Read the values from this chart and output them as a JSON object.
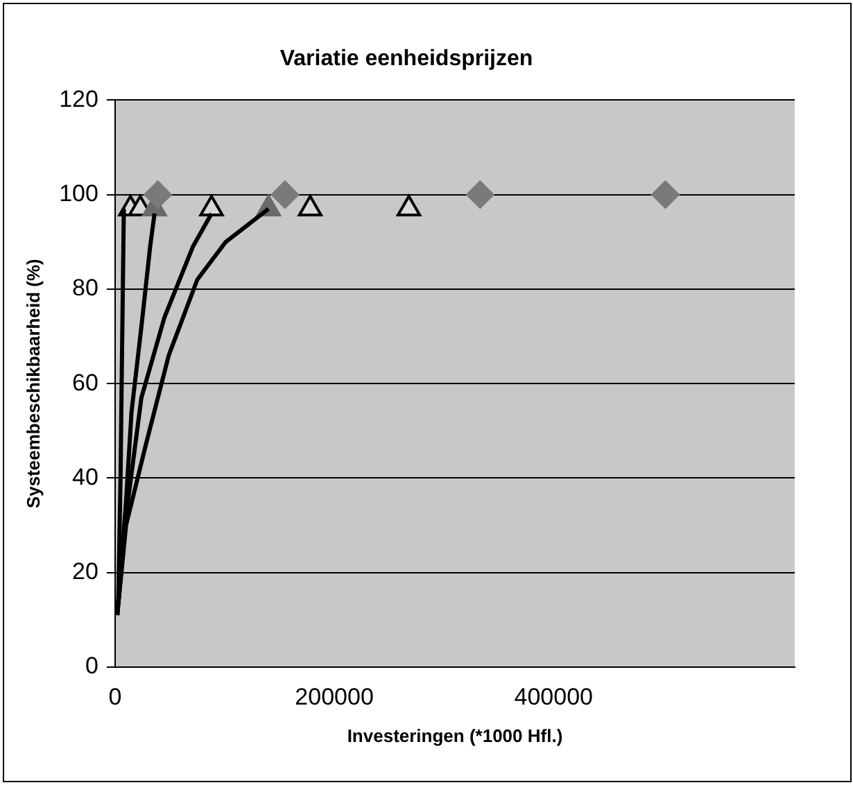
{
  "chart_data": {
    "type": "scatter",
    "title": "Variatie eenheidsprijzen",
    "xlabel": "Investeringen (*1000 Hfl.)",
    "ylabel": "Systeembeschikbaarheid (%)",
    "xlim": [
      0,
      620000
    ],
    "xticks": [
      0,
      200000,
      400000
    ],
    "ylim": [
      0,
      120
    ],
    "yticks": [
      0,
      20,
      40,
      60,
      80,
      100,
      120
    ],
    "grid": "y",
    "legend": false,
    "series": [
      {
        "type": "line",
        "color": "#000000",
        "marker": "none",
        "x": [
          2000,
          3000,
          5000,
          6000,
          8000
        ],
        "values": [
          11,
          15,
          40,
          60,
          97
        ]
      },
      {
        "type": "line",
        "color": "#000000",
        "marker": "none",
        "x": [
          2000,
          10000,
          15000,
          24000,
          32000,
          36000
        ],
        "values": [
          11,
          35,
          54,
          72,
          89,
          96
        ]
      },
      {
        "type": "line",
        "color": "#000000",
        "marker": "none",
        "x": [
          2000,
          10000,
          24000,
          45000,
          71000,
          88000
        ],
        "values": [
          11,
          32,
          57,
          74,
          89,
          96
        ]
      },
      {
        "type": "line",
        "color": "#000000",
        "marker": "none",
        "x": [
          2000,
          10000,
          28000,
          49000,
          75000,
          101000,
          140000
        ],
        "values": [
          11,
          30,
          47,
          66,
          82,
          90,
          97
        ]
      },
      {
        "type": "scatter",
        "color": "#7a7a7a",
        "marker": "diamond",
        "x": [
          39000,
          155000,
          333000,
          502000
        ],
        "values": [
          100,
          100,
          100,
          100
        ]
      },
      {
        "type": "scatter",
        "color": "#6a6a6a",
        "marker": "triangle",
        "x": [
          36000,
          140000
        ],
        "values": [
          97,
          97
        ]
      },
      {
        "type": "scatter",
        "color": "#000000",
        "marker": "triangle",
        "x": [
          14000,
          23000,
          88000,
          178000,
          268000
        ],
        "values": [
          97,
          97,
          97,
          97,
          97
        ]
      }
    ]
  }
}
